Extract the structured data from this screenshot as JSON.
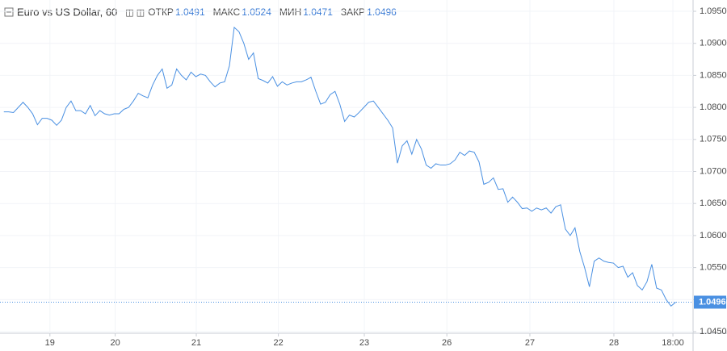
{
  "chart_data": {
    "type": "line",
    "symbol": "Euro vs US Dollar, 60",
    "ohlc": [
      {
        "label": "ОТКР",
        "value": 1.0491
      },
      {
        "label": "МАКС",
        "value": 1.0524
      },
      {
        "label": "МИН",
        "value": 1.0471
      },
      {
        "label": "ЗАКР",
        "value": 1.0496
      }
    ],
    "last_value": 1.0496,
    "color": "#4a90e2",
    "grid": true,
    "xlim": [
      -0.8,
      143.6
    ],
    "xticks": [
      {
        "value": 9.6,
        "label": "19"
      },
      {
        "value": 23.2,
        "label": "20"
      },
      {
        "value": 40.1,
        "label": "21"
      },
      {
        "value": 57.2,
        "label": "22"
      },
      {
        "value": 75.1,
        "label": "23"
      },
      {
        "value": 92.3,
        "label": "26"
      },
      {
        "value": 109.6,
        "label": "27"
      },
      {
        "value": 127.1,
        "label": "28"
      },
      {
        "value": 139.4,
        "label": "18:00"
      }
    ],
    "ylim": [
      1.045,
      1.095
    ],
    "yticks": [
      {
        "value": 1.095,
        "label": "1.0950"
      },
      {
        "value": 1.09,
        "label": "1.0900"
      },
      {
        "value": 1.085,
        "label": "1.0850"
      },
      {
        "value": 1.08,
        "label": "1.0800"
      },
      {
        "value": 1.075,
        "label": "1.0750"
      },
      {
        "value": 1.07,
        "label": "1.0700"
      },
      {
        "value": 1.065,
        "label": "1.0650"
      },
      {
        "value": 1.06,
        "label": "1.0600"
      },
      {
        "value": 1.055,
        "label": "1.0550"
      },
      {
        "value": 1.05,
        "label": "1.0500"
      },
      {
        "value": 1.045,
        "label": "1.0450"
      }
    ],
    "values": [
      1.0793,
      1.0793,
      1.0792,
      1.08,
      1.0808,
      1.08,
      1.079,
      1.0773,
      1.0783,
      1.0783,
      1.078,
      1.0772,
      1.078,
      1.08,
      1.081,
      1.0795,
      1.0795,
      1.079,
      1.0803,
      1.0787,
      1.0795,
      1.079,
      1.0788,
      1.079,
      1.079,
      1.0797,
      1.08,
      1.081,
      1.0822,
      1.0818,
      1.0815,
      1.0835,
      1.085,
      1.086,
      1.083,
      1.0835,
      1.086,
      1.085,
      1.0843,
      1.0855,
      1.0848,
      1.0852,
      1.085,
      1.084,
      1.0832,
      1.0838,
      1.084,
      1.0865,
      1.0925,
      1.0918,
      1.09,
      1.0875,
      1.0885,
      1.0845,
      1.0842,
      1.0838,
      1.0848,
      1.0833,
      1.084,
      1.0835,
      1.0838,
      1.084,
      1.084,
      1.0843,
      1.0847,
      1.0825,
      1.0805,
      1.0808,
      1.082,
      1.0825,
      1.0805,
      1.0778,
      1.0788,
      1.0785,
      1.0792,
      1.08,
      1.0808,
      1.081,
      1.08,
      1.079,
      1.078,
      1.0768,
      1.0713,
      1.074,
      1.0748,
      1.0727,
      1.075,
      1.0735,
      1.071,
      1.0705,
      1.0712,
      1.071,
      1.071,
      1.0712,
      1.0718,
      1.073,
      1.0725,
      1.0732,
      1.073,
      1.0715,
      1.068,
      1.0683,
      1.069,
      1.0672,
      1.0673,
      1.0652,
      1.066,
      1.0652,
      1.0642,
      1.0643,
      1.0638,
      1.0643,
      1.064,
      1.0643,
      1.0635,
      1.0645,
      1.0648,
      1.061,
      1.06,
      1.0612,
      1.0575,
      1.055,
      1.052,
      1.056,
      1.0565,
      1.056,
      1.0558,
      1.0557,
      1.055,
      1.0552,
      1.0535,
      1.0542,
      1.0522,
      1.0515,
      1.0528,
      1.0555,
      1.0518,
      1.0515,
      1.05,
      1.049,
      1.0496
    ]
  }
}
